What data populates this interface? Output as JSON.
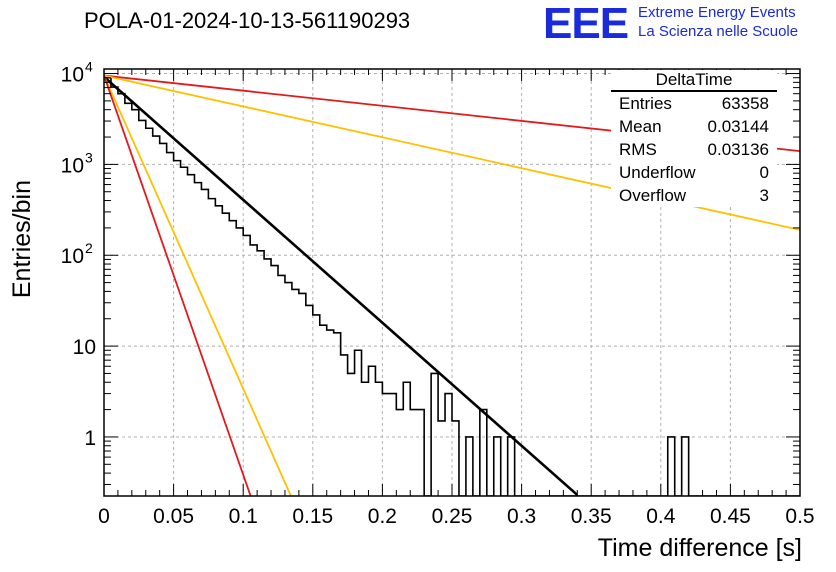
{
  "title": "POLA-01-2024-10-13-561190293",
  "logo": {
    "mark": "EEE",
    "line1": "Extreme Energy Events",
    "line2": "La Scienza nelle Scuole"
  },
  "stats": {
    "title": "DeltaTime",
    "rows": [
      {
        "label": "Entries",
        "value": "63358"
      },
      {
        "label": "Mean",
        "value": "0.03144"
      },
      {
        "label": "RMS",
        "value": "0.03136"
      },
      {
        "label": "Underflow",
        "value": "0"
      },
      {
        "label": "Overflow",
        "value": "3"
      }
    ]
  },
  "colors": {
    "histogram": "#000000",
    "fit": "#000000",
    "red": "#e31a1c",
    "orange": "#ffc000",
    "grid": "#b0b0b0"
  },
  "chart_data": {
    "type": "line",
    "title": "POLA-01-2024-10-13-561190293",
    "xlabel": "Time difference [s]",
    "ylabel": "Entries/bin",
    "xlim": [
      0,
      0.5
    ],
    "ylim_log10": [
      -0.65,
      4.05
    ],
    "yscale": "log",
    "grid": true,
    "x_ticks": [
      "0",
      "0.05",
      "0.1",
      "0.15",
      "0.2",
      "0.25",
      "0.3",
      "0.35",
      "0.4",
      "0.45",
      "0.5"
    ],
    "y_ticks": [
      {
        "value": 1,
        "label": "1"
      },
      {
        "value": 10,
        "label": "10"
      },
      {
        "value": 100,
        "label": "10",
        "exp": "2"
      },
      {
        "value": 1000,
        "label": "10",
        "exp": "3"
      },
      {
        "value": 10000,
        "label": "10",
        "exp": "4"
      }
    ],
    "histogram": {
      "bin_width": 0.005,
      "counts": [
        9000,
        7100,
        6000,
        4700,
        4000,
        3050,
        2500,
        2050,
        1700,
        1350,
        1100,
        930,
        770,
        630,
        530,
        420,
        350,
        290,
        240,
        200,
        165,
        130,
        112,
        91,
        77,
        60,
        50,
        42,
        38,
        28,
        22,
        17,
        15,
        14,
        8,
        5,
        9,
        4,
        6,
        4,
        3,
        3,
        2,
        4,
        2,
        2,
        0.1,
        5,
        1.5,
        3,
        1.5,
        0.1,
        1,
        0.1,
        2,
        0.1,
        1,
        0.1,
        1,
        0.1,
        0.1,
        0.1,
        0.1,
        0.1,
        0.1,
        0.1,
        0.1,
        0.1,
        0.1,
        0.1,
        0.1,
        0.1,
        0.1,
        0.1,
        0.1,
        0.1,
        0.1,
        0.1,
        0.1,
        0.1,
        0.1,
        1,
        0.1,
        1,
        0.1,
        0.1,
        0.1,
        0.1,
        0.1,
        0.1,
        0.1,
        0.1,
        0.1,
        0.1,
        0.1,
        0.1,
        0.1,
        0.1,
        0.1,
        0.1
      ]
    },
    "series": [
      {
        "color": "#000000",
        "values": [
          [
            0,
            9200
          ],
          [
            0.34,
            0.23
          ]
        ]
      },
      {
        "color": "#e31a1c",
        "values": [
          [
            0,
            9500
          ],
          [
            0.5,
            1400
          ]
        ]
      },
      {
        "color": "#ffc000",
        "values": [
          [
            0,
            9500
          ],
          [
            0.5,
            190
          ]
        ]
      },
      {
        "color": "#ffc000",
        "values": [
          [
            0,
            9500
          ],
          [
            0.1345,
            0.22
          ]
        ]
      },
      {
        "color": "#e31a1c",
        "values": [
          [
            0,
            9500
          ],
          [
            0.1055,
            0.22
          ]
        ]
      }
    ]
  }
}
